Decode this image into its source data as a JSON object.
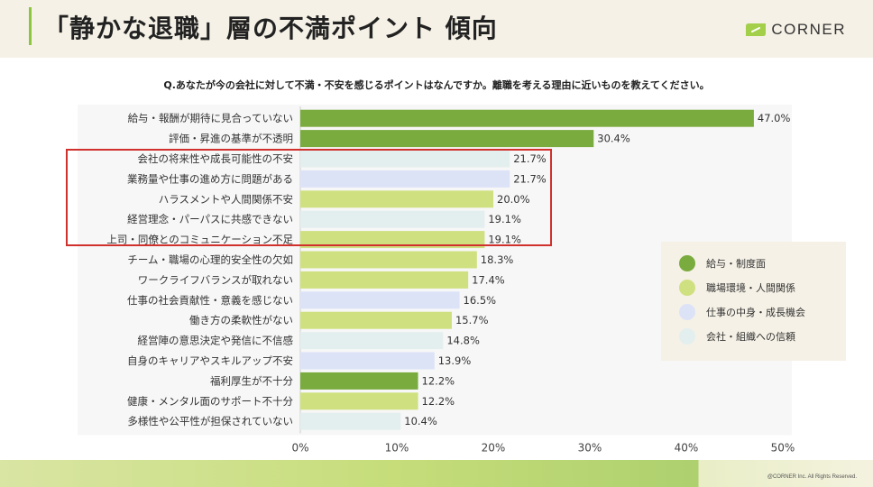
{
  "header": {
    "title": "「静かな退職」層の不満ポイント 傾向",
    "brand": "CORNER"
  },
  "question": "Q.あなたが今の会社に対して不満・不安を感じるポイントはなんですか。離職を考える理由に近いものを教えてください。",
  "colors": {
    "給与・制度面": "#7aab3f",
    "職場環境・人間関係": "#cfe080",
    "仕事の中身・成長機会": "#dce3f7",
    "会社・組織への信頼": "#e3efee"
  },
  "chart_data": {
    "type": "bar",
    "orientation": "horizontal",
    "categories": [
      "給与・報酬が期待に見合っていない",
      "評価・昇進の基準が不透明",
      "会社の将来性や成長可能性の不安",
      "業務量や仕事の進め方に問題がある",
      "ハラスメントや人間関係不安",
      "経営理念・パーパスに共感できない",
      "上司・同僚とのコミュニケーション不足",
      "チーム・職場の心理的安全性の欠如",
      "ワークライフバランスが取れない",
      "仕事の社会貢献性・意義を感じない",
      "働き方の柔軟性がない",
      "経営陣の意思決定や発信に不信感",
      "自身のキャリアやスキルアップ不安",
      "福利厚生が不十分",
      "健康・メンタル面のサポート不十分",
      "多様性や公平性が担保されていない"
    ],
    "values": [
      47.0,
      30.4,
      21.7,
      21.7,
      20.0,
      19.1,
      19.1,
      18.3,
      17.4,
      16.5,
      15.7,
      14.8,
      13.9,
      12.2,
      12.2,
      10.4
    ],
    "value_labels": [
      "47.0%",
      "30.4%",
      "21.7%",
      "21.7%",
      "20.0%",
      "19.1%",
      "19.1%",
      "18.3%",
      "17.4%",
      "16.5%",
      "15.7%",
      "14.8%",
      "13.9%",
      "12.2%",
      "12.2%",
      "10.4%"
    ],
    "groups": [
      "給与・制度面",
      "給与・制度面",
      "会社・組織への信頼",
      "仕事の中身・成長機会",
      "職場環境・人間関係",
      "会社・組織への信頼",
      "職場環境・人間関係",
      "職場環境・人間関係",
      "職場環境・人間関係",
      "仕事の中身・成長機会",
      "職場環境・人間関係",
      "会社・組織への信頼",
      "仕事の中身・成長機会",
      "給与・制度面",
      "職場環境・人間関係",
      "会社・組織への信頼"
    ],
    "xlim": [
      0,
      50
    ],
    "xticks": [
      "0%",
      "10%",
      "20%",
      "30%",
      "40%",
      "50%"
    ],
    "highlighted": [
      2,
      3,
      4,
      5,
      6
    ],
    "legend": [
      "給与・制度面",
      "職場環境・人間関係",
      "仕事の中身・成長機会",
      "会社・組織への信頼"
    ],
    "legend_position": "right"
  },
  "copyright": "@CORNER Inc. All Rights Reserved."
}
